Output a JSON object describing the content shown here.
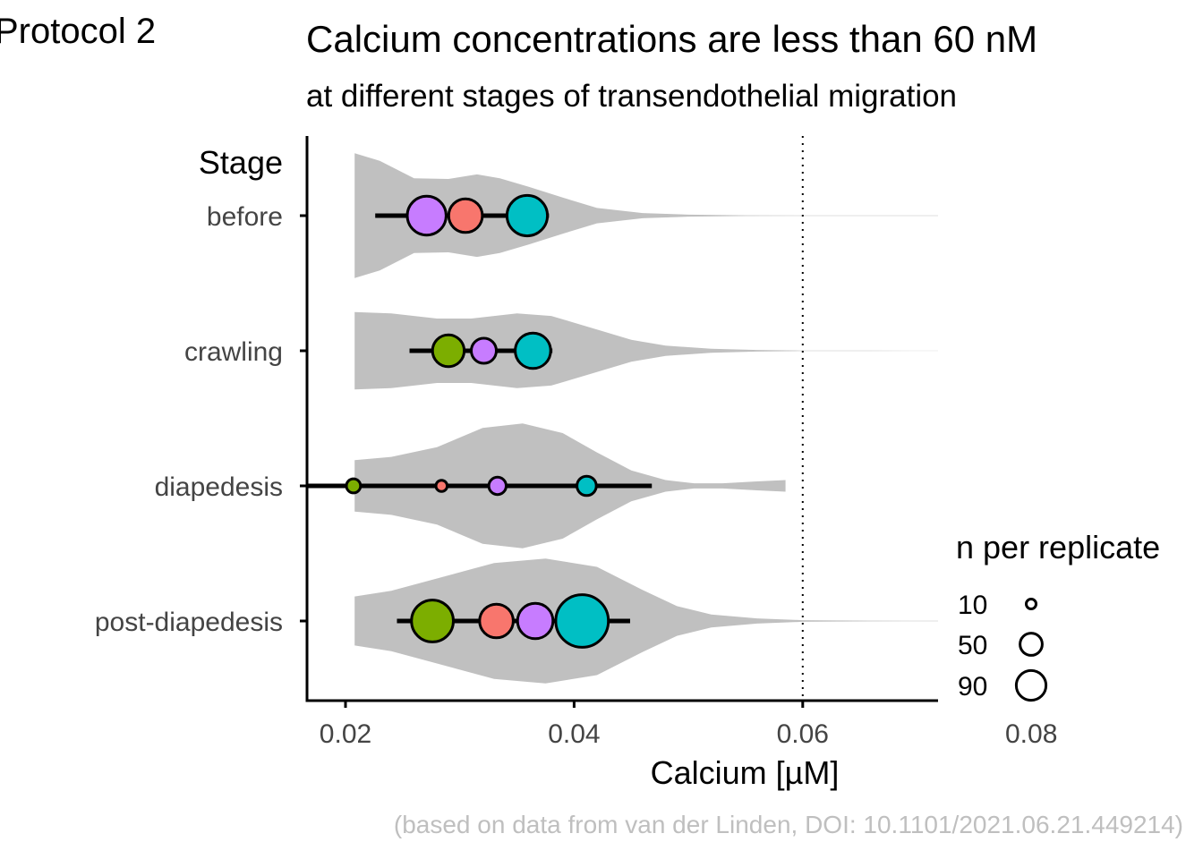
{
  "panel_tag": "Protocol 2",
  "caption": "(based on data from van der Linden, DOI: 10.1101/2021.06.21.449214)",
  "colors": {
    "violin": "#c0c0c0",
    "axis": "#000000",
    "tick_text": "#444444",
    "caption": "#bfbfbf",
    "replicate_1": "#f8766d",
    "replicate_2": "#7cae00",
    "replicate_3": "#00bfc4",
    "replicate_4": "#c77cff"
  },
  "chart_data": {
    "type": "violin",
    "title": "Calcium concentrations are less than 60 nM",
    "subtitle": "at different stages of transendothelial migration",
    "xlabel": "Calcium [µM]",
    "ylabel": "Stage",
    "xlim": [
      0.0167,
      0.0807
    ],
    "x_ticks": [
      "0.02",
      "0.04",
      "0.06",
      "0.08"
    ],
    "x_tick_values": [
      0.02,
      0.04,
      0.06,
      0.08
    ],
    "reference_line": 0.06,
    "reference_line_style": "dotted",
    "grid": false,
    "categories": [
      "before",
      "crawling",
      "diapedesis",
      "post-diapedesis"
    ],
    "violins": [
      {
        "stage": "before",
        "profile": [
          [
            0.0208,
            0.97
          ],
          [
            0.023,
            0.85
          ],
          [
            0.026,
            0.58
          ],
          [
            0.029,
            0.57
          ],
          [
            0.0315,
            0.64
          ],
          [
            0.0335,
            0.58
          ],
          [
            0.036,
            0.45
          ],
          [
            0.039,
            0.28
          ],
          [
            0.042,
            0.12
          ],
          [
            0.046,
            0.04
          ],
          [
            0.05,
            0.015
          ],
          [
            0.055,
            0.006
          ],
          [
            0.06,
            0.004
          ],
          [
            0.066,
            0.004
          ],
          [
            0.072,
            0.003
          ],
          [
            0.0758,
            0.003
          ]
        ]
      },
      {
        "stage": "crawling",
        "profile": [
          [
            0.0208,
            0.6
          ],
          [
            0.024,
            0.58
          ],
          [
            0.028,
            0.5
          ],
          [
            0.031,
            0.5
          ],
          [
            0.035,
            0.58
          ],
          [
            0.038,
            0.54
          ],
          [
            0.042,
            0.33
          ],
          [
            0.045,
            0.17
          ],
          [
            0.048,
            0.08
          ],
          [
            0.052,
            0.03
          ],
          [
            0.056,
            0.012
          ],
          [
            0.06,
            0.004
          ],
          [
            0.066,
            0.003
          ],
          [
            0.072,
            0.002
          ],
          [
            0.078,
            0.002
          ],
          [
            0.0825,
            0.002
          ]
        ]
      },
      {
        "stage": "diapedesis",
        "profile": [
          [
            0.0208,
            0.4
          ],
          [
            0.024,
            0.45
          ],
          [
            0.028,
            0.6
          ],
          [
            0.032,
            0.9
          ],
          [
            0.0355,
            0.97
          ],
          [
            0.039,
            0.82
          ],
          [
            0.042,
            0.52
          ],
          [
            0.045,
            0.24
          ],
          [
            0.048,
            0.09
          ],
          [
            0.0505,
            0.04
          ],
          [
            0.053,
            0.04
          ],
          [
            0.056,
            0.07
          ],
          [
            0.0585,
            0.09
          ]
        ]
      },
      {
        "stage": "post-diapedesis",
        "profile": [
          [
            0.0208,
            0.38
          ],
          [
            0.024,
            0.47
          ],
          [
            0.028,
            0.66
          ],
          [
            0.033,
            0.9
          ],
          [
            0.0375,
            0.97
          ],
          [
            0.042,
            0.84
          ],
          [
            0.046,
            0.48
          ],
          [
            0.049,
            0.23
          ],
          [
            0.052,
            0.1
          ],
          [
            0.056,
            0.04
          ],
          [
            0.06,
            0.012
          ],
          [
            0.066,
            0.005
          ],
          [
            0.072,
            0.003
          ],
          [
            0.078,
            0.002
          ],
          [
            0.083,
            0.002
          ]
        ]
      }
    ],
    "summary_intervals": [
      {
        "stage": "before",
        "low": 0.0226,
        "high": 0.0378
      },
      {
        "stage": "crawling",
        "low": 0.0256,
        "high": 0.0381
      },
      {
        "stage": "diapedesis",
        "low": 0.0167,
        "high": 0.0468
      },
      {
        "stage": "post-diapedesis",
        "low": 0.0245,
        "high": 0.0449
      }
    ],
    "replicate_means": [
      {
        "stage": "before",
        "replicate": "replicate_4",
        "x": 0.0271,
        "n": 60
      },
      {
        "stage": "before",
        "replicate": "replicate_1",
        "x": 0.0305,
        "n": 45
      },
      {
        "stage": "before",
        "replicate": "replicate_3",
        "x": 0.0359,
        "n": 65
      },
      {
        "stage": "crawling",
        "replicate": "replicate_2",
        "x": 0.029,
        "n": 40
      },
      {
        "stage": "crawling",
        "replicate": "replicate_4",
        "x": 0.0321,
        "n": 25
      },
      {
        "stage": "crawling",
        "replicate": "replicate_3",
        "x": 0.0364,
        "n": 50
      },
      {
        "stage": "diapedesis",
        "replicate": "replicate_2",
        "x": 0.0207,
        "n": 8
      },
      {
        "stage": "diapedesis",
        "replicate": "replicate_1",
        "x": 0.0284,
        "n": 5
      },
      {
        "stage": "diapedesis",
        "replicate": "replicate_4",
        "x": 0.0333,
        "n": 12
      },
      {
        "stage": "diapedesis",
        "replicate": "replicate_3",
        "x": 0.0411,
        "n": 15
      },
      {
        "stage": "post-diapedesis",
        "replicate": "replicate_2",
        "x": 0.0276,
        "n": 70
      },
      {
        "stage": "post-diapedesis",
        "replicate": "replicate_1",
        "x": 0.0332,
        "n": 45
      },
      {
        "stage": "post-diapedesis",
        "replicate": "replicate_4",
        "x": 0.0366,
        "n": 50
      },
      {
        "stage": "post-diapedesis",
        "replicate": "replicate_3",
        "x": 0.0407,
        "n": 110
      }
    ],
    "size_legend": {
      "title": "n per replicate",
      "entries": [
        {
          "label": "10",
          "n": 10
        },
        {
          "label": "50",
          "n": 50
        },
        {
          "label": "90",
          "n": 90
        }
      ],
      "placement": "right"
    }
  }
}
